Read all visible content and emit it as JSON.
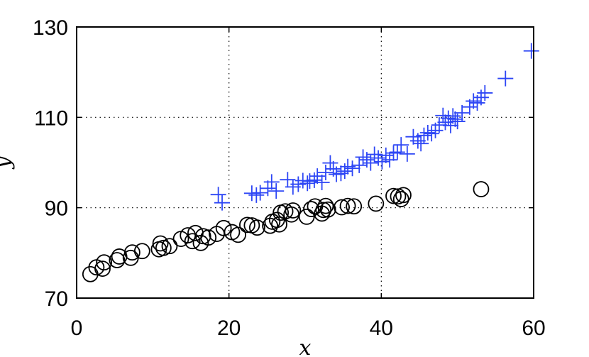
{
  "chart_data": {
    "type": "scatter",
    "title": "",
    "xlabel": "x",
    "ylabel": "y",
    "xlim": [
      0,
      60
    ],
    "ylim": [
      70,
      130
    ],
    "xticks": [
      "0",
      "20",
      "40",
      "60"
    ],
    "yticks": [
      "70",
      "90",
      "110",
      "130"
    ],
    "grid": true,
    "legend": "none",
    "series": [
      {
        "marker": "circle",
        "color": "#000000",
        "points": [
          [
            1.8,
            75.3
          ],
          [
            2.6,
            76.8
          ],
          [
            3.4,
            76.5
          ],
          [
            3.6,
            77.9
          ],
          [
            5.3,
            78.4
          ],
          [
            5.6,
            79.2
          ],
          [
            7.1,
            78.9
          ],
          [
            7.3,
            80.1
          ],
          [
            8.6,
            80.4
          ],
          [
            10.8,
            80.8
          ],
          [
            11.0,
            82.1
          ],
          [
            11.4,
            81.1
          ],
          [
            12.2,
            81.5
          ],
          [
            13.7,
            83.1
          ],
          [
            14.6,
            83.9
          ],
          [
            15.2,
            82.6
          ],
          [
            15.6,
            84.4
          ],
          [
            16.3,
            82.2
          ],
          [
            16.6,
            83.7
          ],
          [
            17.3,
            83.4
          ],
          [
            18.4,
            84.2
          ],
          [
            19.3,
            85.5
          ],
          [
            20.4,
            84.6
          ],
          [
            21.2,
            84.0
          ],
          [
            22.4,
            86.2
          ],
          [
            23.0,
            86.1
          ],
          [
            23.7,
            85.6
          ],
          [
            25.4,
            86.0
          ],
          [
            25.7,
            86.9
          ],
          [
            26.3,
            87.3
          ],
          [
            26.6,
            86.3
          ],
          [
            26.8,
            88.9
          ],
          [
            27.4,
            89.2
          ],
          [
            28.2,
            88.5
          ],
          [
            28.4,
            89.4
          ],
          [
            30.2,
            88.0
          ],
          [
            30.8,
            89.7
          ],
          [
            31.3,
            90.3
          ],
          [
            32.2,
            88.7
          ],
          [
            32.4,
            89.5
          ],
          [
            32.7,
            90.4
          ],
          [
            33.0,
            89.6
          ],
          [
            34.8,
            90.1
          ],
          [
            35.6,
            90.4
          ],
          [
            36.4,
            90.3
          ],
          [
            39.3,
            90.9
          ],
          [
            41.6,
            92.6
          ],
          [
            42.2,
            92.5
          ],
          [
            42.6,
            91.9
          ],
          [
            42.9,
            92.8
          ],
          [
            53.1,
            94.1
          ]
        ]
      },
      {
        "marker": "plus",
        "color": "#2d46f5",
        "points": [
          [
            18.6,
            92.9
          ],
          [
            19.1,
            91.1
          ],
          [
            23.0,
            93.2
          ],
          [
            23.6,
            92.8
          ],
          [
            24.1,
            93.3
          ],
          [
            25.1,
            94.3
          ],
          [
            25.6,
            95.7
          ],
          [
            26.2,
            93.7
          ],
          [
            27.7,
            96.2
          ],
          [
            28.4,
            94.6
          ],
          [
            29.1,
            95.2
          ],
          [
            29.7,
            96.0
          ],
          [
            30.3,
            95.4
          ],
          [
            30.6,
            95.9
          ],
          [
            31.2,
            96.1
          ],
          [
            31.6,
            97.0
          ],
          [
            32.2,
            95.6
          ],
          [
            32.7,
            97.8
          ],
          [
            33.3,
            99.9
          ],
          [
            33.7,
            98.6
          ],
          [
            34.1,
            97.4
          ],
          [
            34.7,
            97.6
          ],
          [
            35.2,
            98.1
          ],
          [
            35.6,
            99.1
          ],
          [
            36.2,
            98.7
          ],
          [
            37.1,
            99.4
          ],
          [
            37.6,
            101.2
          ],
          [
            38.1,
            100.6
          ],
          [
            38.6,
            99.9
          ],
          [
            39.1,
            101.8
          ],
          [
            39.6,
            101.0
          ],
          [
            40.1,
            100.2
          ],
          [
            40.6,
            101.6
          ],
          [
            41.1,
            100.6
          ],
          [
            41.6,
            102.1
          ],
          [
            42.1,
            102.3
          ],
          [
            42.6,
            103.9
          ],
          [
            43.4,
            101.9
          ],
          [
            44.2,
            105.7
          ],
          [
            44.8,
            104.8
          ],
          [
            45.2,
            104.2
          ],
          [
            45.6,
            106.0
          ],
          [
            46.1,
            106.6
          ],
          [
            46.6,
            106.4
          ],
          [
            47.1,
            107.1
          ],
          [
            47.6,
            108.3
          ],
          [
            48.1,
            110.4
          ],
          [
            48.4,
            108.9
          ],
          [
            48.8,
            109.8
          ],
          [
            49.1,
            108.2
          ],
          [
            49.4,
            110.3
          ],
          [
            49.7,
            109.6
          ],
          [
            50.0,
            109.1
          ],
          [
            50.6,
            111.0
          ],
          [
            51.6,
            112.3
          ],
          [
            52.1,
            113.6
          ],
          [
            52.6,
            113.2
          ],
          [
            53.1,
            114.4
          ],
          [
            53.6,
            115.4
          ],
          [
            56.3,
            118.6
          ],
          [
            59.7,
            124.7
          ]
        ]
      }
    ]
  }
}
